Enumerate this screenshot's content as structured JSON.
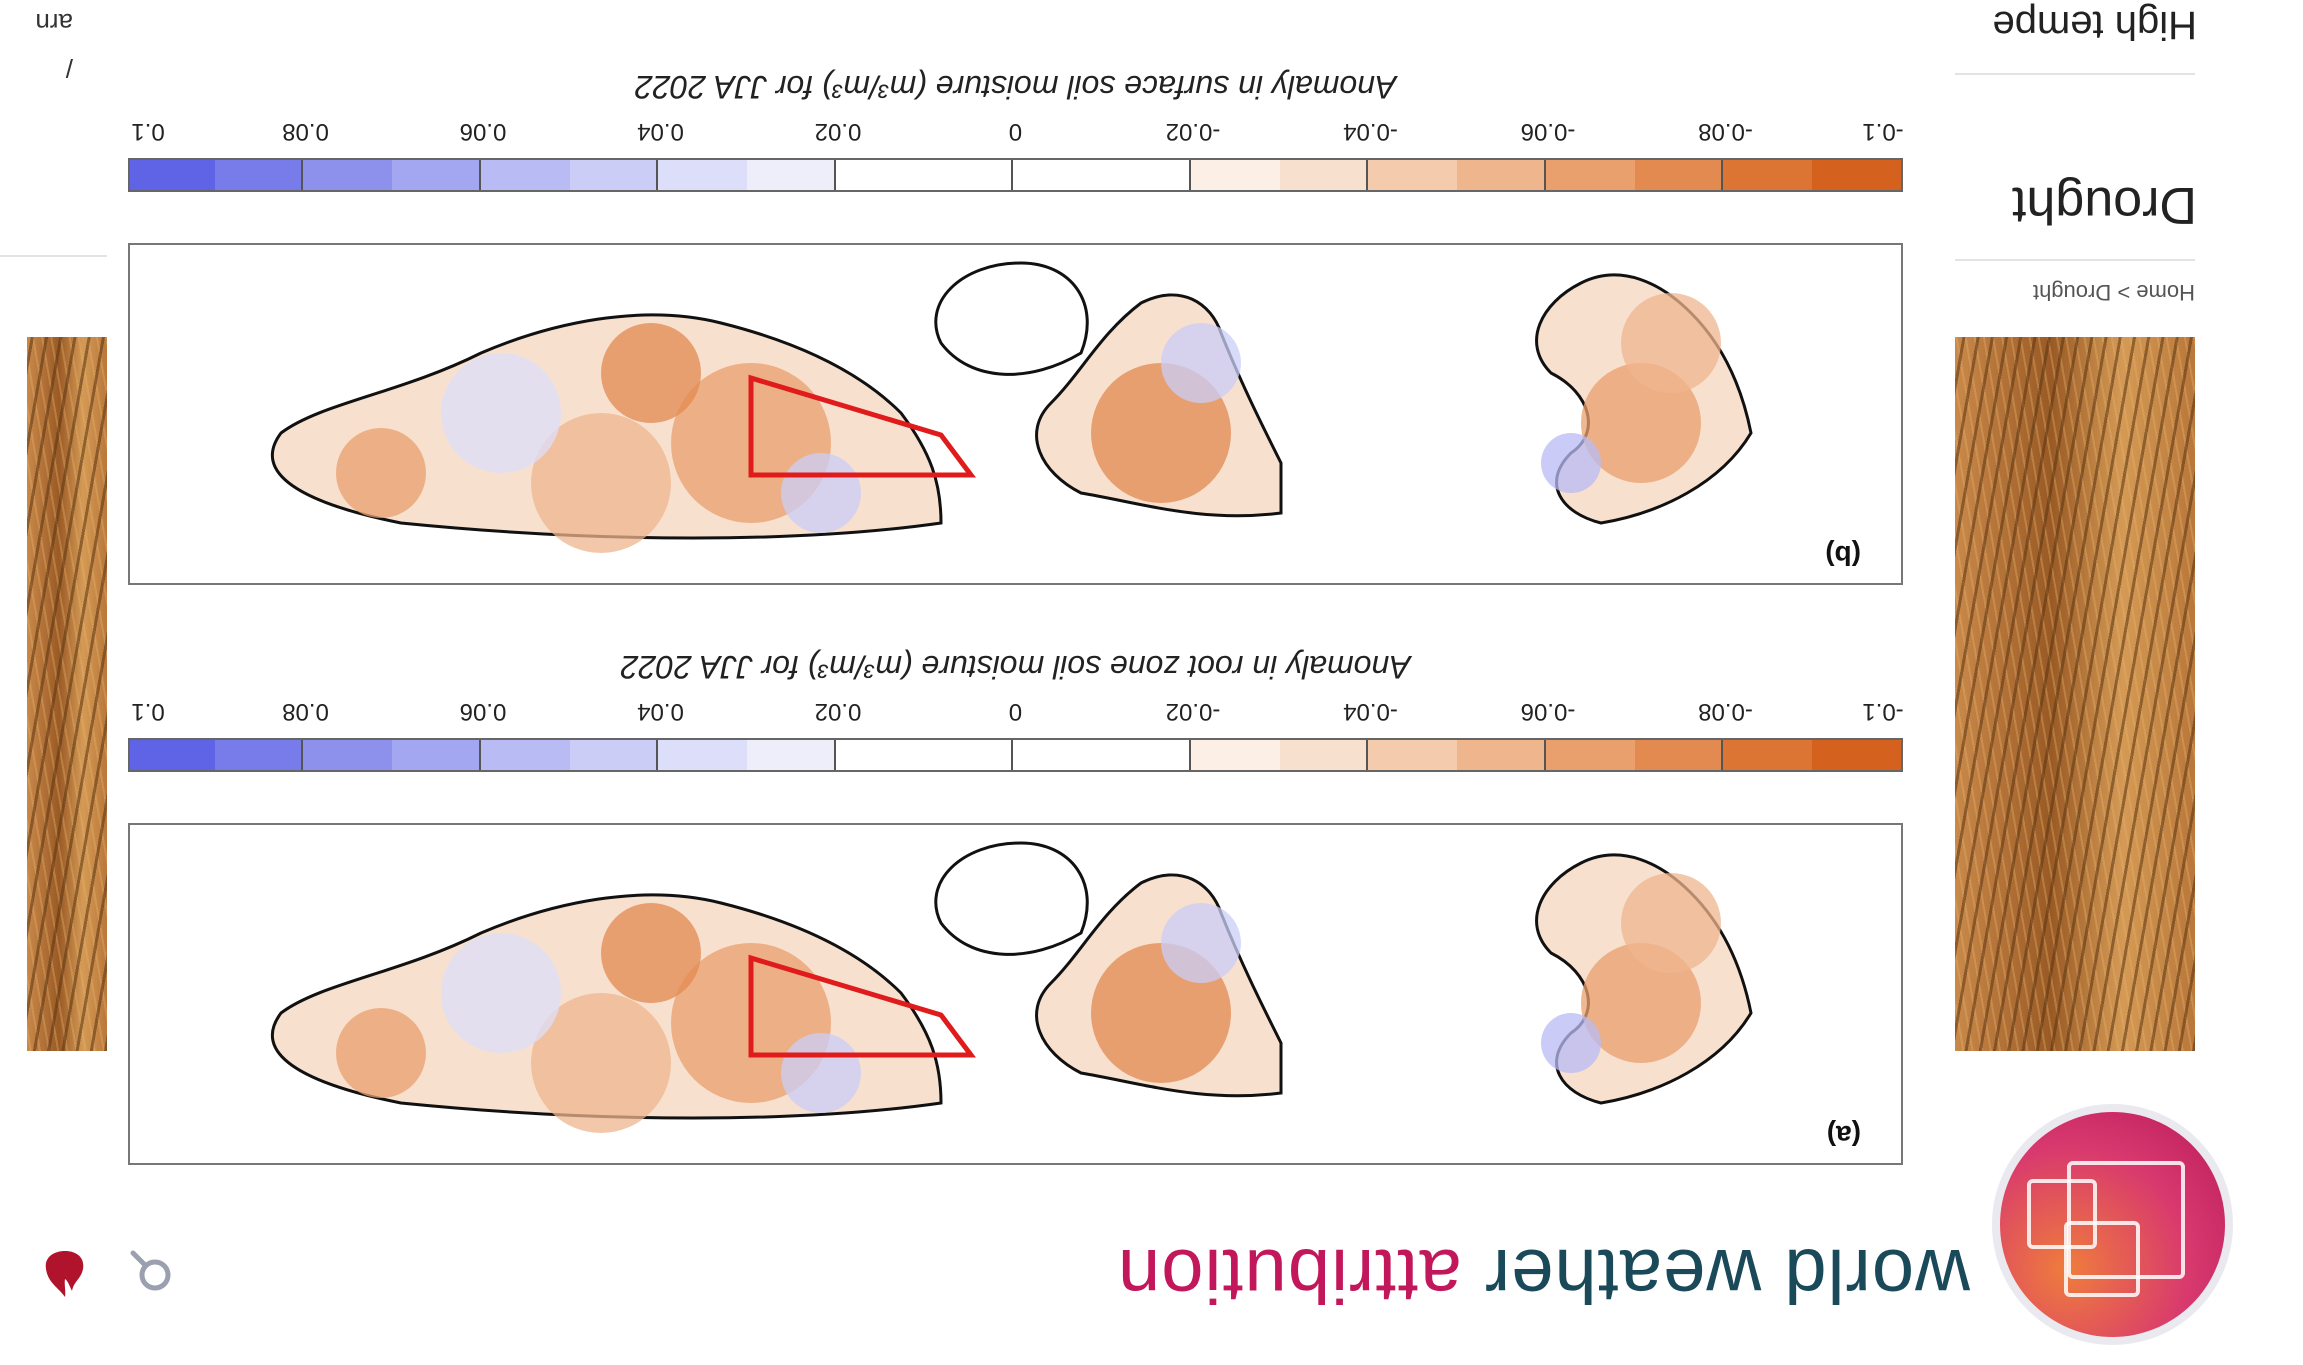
{
  "site": {
    "logo_word_1": "world weather",
    "logo_word_2": "attribution",
    "colors": {
      "teal": "#1a4a5a",
      "magenta": "#c2185b",
      "orange": "#ef7d3c"
    }
  },
  "header": {
    "icons": [
      "search-icon",
      "flame-icon",
      "wwa-logo-icon"
    ]
  },
  "sidebar": {
    "breadcrumb": "Home > Drought",
    "title": "Drought",
    "next_title": "High tempe"
  },
  "right_strip": {
    "text_1": "arn",
    "text_2": "/"
  },
  "figure": {
    "panels": [
      {
        "label": "(a)",
        "colorbar_title": "Anomaly in root zone soil moisture (m³/m³) for JJA 2022"
      },
      {
        "label": "(b)",
        "colorbar_title": "Anomaly in surface soil moisture (m³/m³) for JJA 2022"
      }
    ],
    "tick_labels": [
      "-0.1",
      "-0.08",
      "-0.06",
      "-0.04",
      "-0.02",
      "0",
      "0.02",
      "0.04",
      "0.06",
      "0.08",
      "0.1"
    ],
    "colormap": {
      "negative": [
        "#d4611e",
        "#dc7434",
        "#e38a50",
        "#e9a06d",
        "#efb68d",
        "#f4cbac",
        "#f8e0cf",
        "#fcefe6",
        "#ffffff",
        "#ffffff"
      ],
      "positive": [
        "#ffffff",
        "#ffffff",
        "#eeeefb",
        "#dddffa",
        "#cbcdf7",
        "#b8bbf4",
        "#a3a6f0",
        "#8d91ec",
        "#777cea",
        "#5f64e6"
      ]
    },
    "region_color": "#e01b1b"
  }
}
